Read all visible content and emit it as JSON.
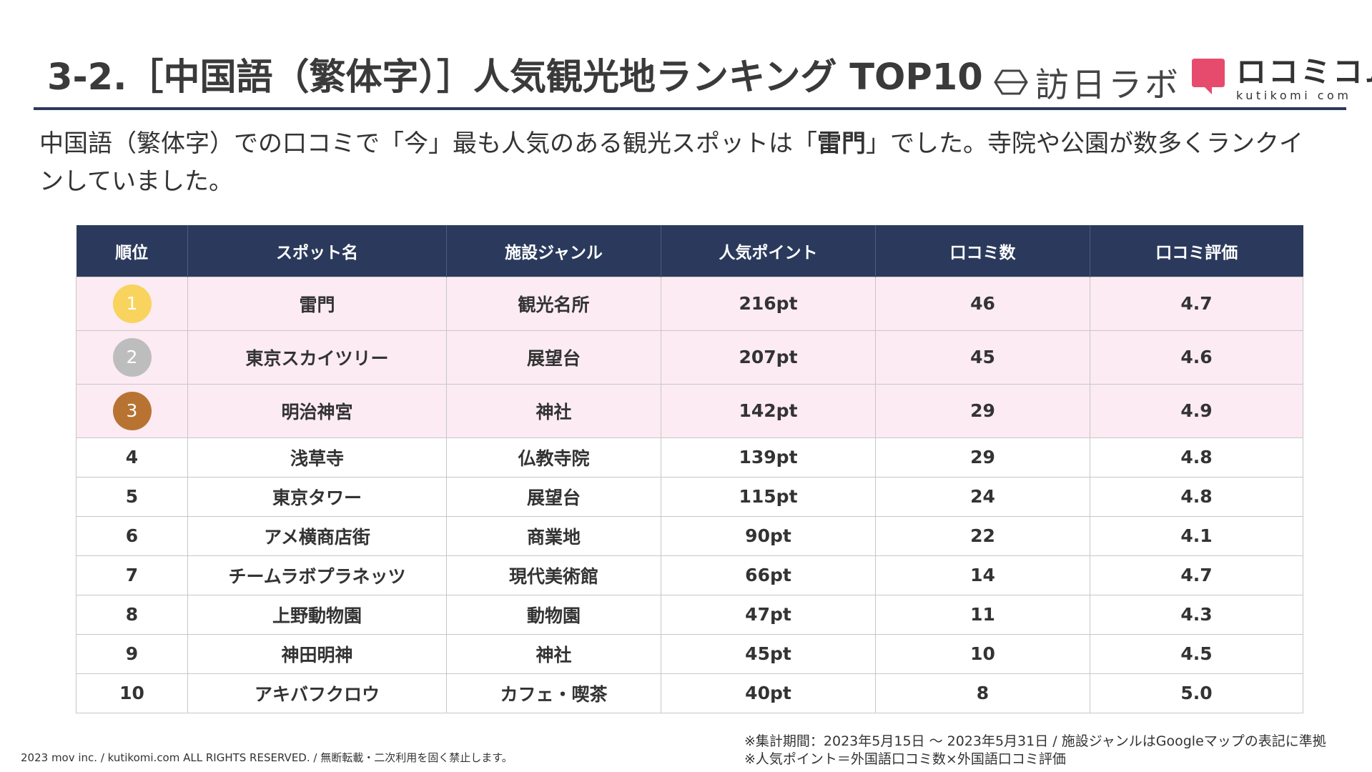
{
  "header": {
    "title": "3-2.［中国語（繁体字）］人気観光地ランキング TOP10",
    "logo_houjin": "訪日ラボ",
    "logo_kutikomi_main": "ロコミコム",
    "logo_kutikomi_sub": "kutikomi com"
  },
  "lead": {
    "part1": "中国語（繁体字）での口コミで「今」最も人気のある観光スポットは「",
    "highlight": "雷門",
    "part2": "」でした。寺院や公園が数多くランクインしていました。"
  },
  "table": {
    "columns": [
      "順位",
      "スポット名",
      "施設ジャンル",
      "人気ポイント",
      "口コミ数",
      "口コミ評価"
    ],
    "rows": [
      {
        "rank": "1",
        "spot": "雷門",
        "genre": "観光名所",
        "points": "216pt",
        "reviews": "46",
        "rating": "4.7"
      },
      {
        "rank": "2",
        "spot": "東京スカイツリー",
        "genre": "展望台",
        "points": "207pt",
        "reviews": "45",
        "rating": "4.6"
      },
      {
        "rank": "3",
        "spot": "明治神宮",
        "genre": "神社",
        "points": "142pt",
        "reviews": "29",
        "rating": "4.9"
      },
      {
        "rank": "4",
        "spot": "浅草寺",
        "genre": "仏教寺院",
        "points": "139pt",
        "reviews": "29",
        "rating": "4.8"
      },
      {
        "rank": "5",
        "spot": "東京タワー",
        "genre": "展望台",
        "points": "115pt",
        "reviews": "24",
        "rating": "4.8"
      },
      {
        "rank": "6",
        "spot": "アメ横商店街",
        "genre": "商業地",
        "points": "90pt",
        "reviews": "22",
        "rating": "4.1"
      },
      {
        "rank": "7",
        "spot": "チームラボプラネッツ",
        "genre": "現代美術館",
        "points": "66pt",
        "reviews": "14",
        "rating": "4.7"
      },
      {
        "rank": "8",
        "spot": "上野動物園",
        "genre": "動物園",
        "points": "47pt",
        "reviews": "11",
        "rating": "4.3"
      },
      {
        "rank": "9",
        "spot": "神田明神",
        "genre": "神社",
        "points": "45pt",
        "reviews": "10",
        "rating": "4.5"
      },
      {
        "rank": "10",
        "spot": "アキバフクロウ",
        "genre": "カフェ・喫茶",
        "points": "40pt",
        "reviews": "8",
        "rating": "5.0"
      }
    ]
  },
  "colors": {
    "header_bg": "#2b3a5c",
    "top3_row_bg": "#fcebf3",
    "medal_gold": "#f8d35e",
    "medal_silver": "#bdbdbd",
    "medal_bronze": "#b87333",
    "kutikomi_brand": "#e64b6d"
  },
  "footer": {
    "copyright": "2023 mov inc. / kutikomi.com ALL RIGHTS RESERVED. / 無断転載・二次利用を固く禁止します。",
    "note1": "※集計期間：2023年5月15日 〜 2023年5月31日 / 施設ジャンルはGoogleマップの表記に準拠",
    "note2": "※人気ポイント＝外国語口コミ数×外国語口コミ評価"
  }
}
